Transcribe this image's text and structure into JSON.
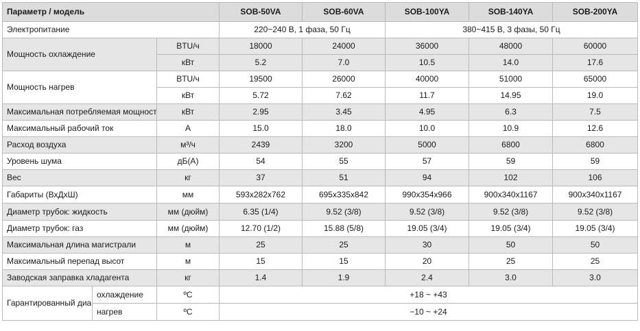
{
  "header": {
    "param": "Параметр / модель",
    "models": [
      "SOB-50VA",
      "SOB-60VA",
      "SOB-100YA",
      "SOB-140YA",
      "SOB-200YA"
    ]
  },
  "power_supply": {
    "label": "Электропитание",
    "single_phase": "220~240 В, 1 фаза, 50 Гц",
    "three_phase": "380~415 В, 3 фазы, 50 Гц"
  },
  "cooling": {
    "label": "Мощность охлаждение",
    "unit_btu": "BTU/ч",
    "values_btu": [
      "18000",
      "24000",
      "36000",
      "48000",
      "60000"
    ],
    "unit_kw": "кВт",
    "values_kw": [
      "5.2",
      "7.0",
      "10.5",
      "14.0",
      "17.6"
    ]
  },
  "heating": {
    "label": "Мощность нагрев",
    "unit_btu": "BTU/ч",
    "values_btu": [
      "19500",
      "26000",
      "40000",
      "51000",
      "65000"
    ],
    "unit_kw": "кВт",
    "values_kw": [
      "5.72",
      "7.62",
      "11.7",
      "14.95",
      "19.0"
    ]
  },
  "rows": [
    {
      "label": "Максимальная потребляемая мощность",
      "unit": "кВт",
      "values": [
        "2.95",
        "3.45",
        "4.95",
        "6.3",
        "7.5"
      ]
    },
    {
      "label": "Максимальный рабочий ток",
      "unit": "А",
      "values": [
        "15.0",
        "18.0",
        "10.0",
        "10.9",
        "12.6"
      ]
    },
    {
      "label": "Расход воздуха",
      "unit": "м³/ч",
      "values": [
        "2439",
        "3200",
        "5000",
        "6800",
        "6800"
      ]
    },
    {
      "label": "Уровень шума",
      "unit": "дБ(А)",
      "values": [
        "54",
        "55",
        "57",
        "59",
        "59"
      ]
    },
    {
      "label": "Вес",
      "unit": "кг",
      "values": [
        "37",
        "51",
        "94",
        "102",
        "106"
      ]
    },
    {
      "label": "Габариты (ВхДхШ)",
      "unit": "мм",
      "values": [
        "593x282x762",
        "695x335x842",
        "990x354x966",
        "900x340x1167",
        "900x340x1167"
      ]
    },
    {
      "label": "Диаметр трубок: жидкость",
      "unit": "мм (дюйм)",
      "values": [
        "6.35 (1/4)",
        "9.52 (3/8)",
        "9.52 (3/8)",
        "9.52 (3/8)",
        "9.52 (3/8)"
      ]
    },
    {
      "label": "Диаметр трубок: газ",
      "unit": "мм (дюйм)",
      "values": [
        "12.70 (1/2)",
        "15.88 (5/8)",
        "19.05 (3/4)",
        "19.05 (3/4)",
        "19.05 (3/4)"
      ]
    },
    {
      "label": "Максимальная длина магистрали",
      "unit": "м",
      "values": [
        "25",
        "25",
        "30",
        "50",
        "50"
      ]
    },
    {
      "label": "Максимальный перепад высот",
      "unit": "м",
      "values": [
        "15",
        "15",
        "20",
        "25",
        "25"
      ]
    },
    {
      "label": "Заводская заправка хладагента",
      "unit": "кг",
      "values": [
        "1.4",
        "1.9",
        "2.4",
        "3.0",
        "3.0"
      ]
    }
  ],
  "temperature": {
    "label": "Гарантированный диапазон наружных температур",
    "cooling_label": "охлаждение",
    "heating_label": "нагрев",
    "unit": "ºС",
    "cooling_range": "+18 ~ +43",
    "heating_range": "−10 ~ +24"
  }
}
